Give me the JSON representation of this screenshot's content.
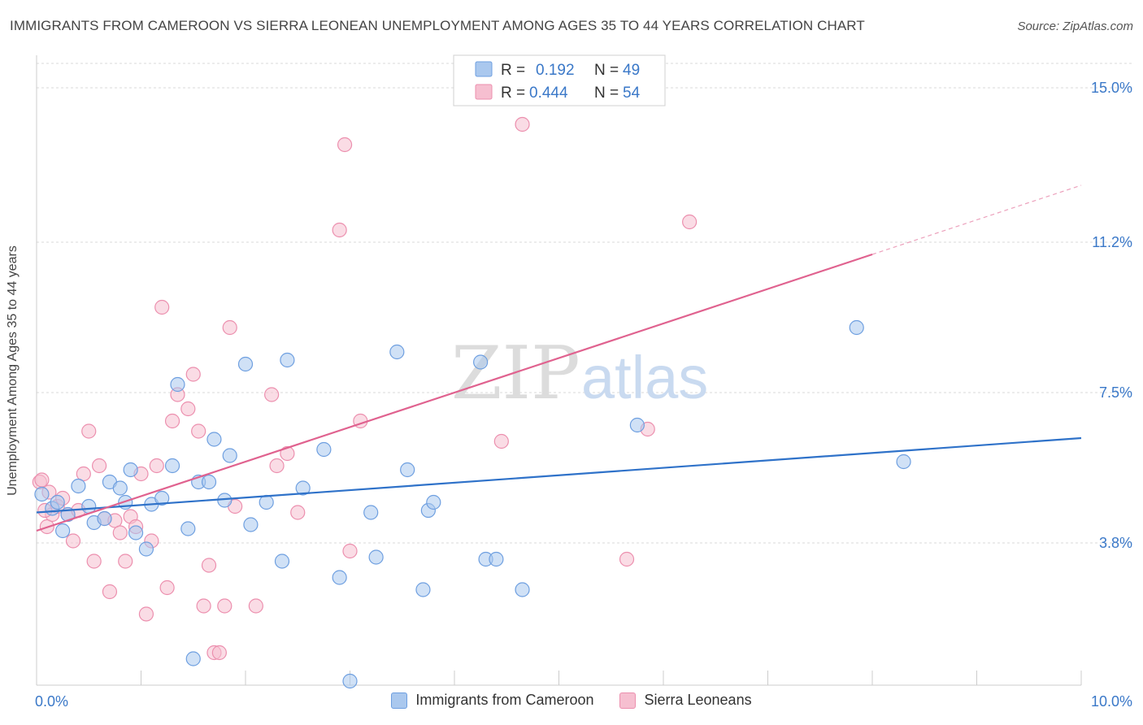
{
  "title": "IMMIGRANTS FROM CAMEROON VS SIERRA LEONEAN UNEMPLOYMENT AMONG AGES 35 TO 44 YEARS CORRELATION CHART",
  "source": "Source: ZipAtlas.com",
  "watermark": {
    "zip": "ZIP",
    "atlas": "atlas"
  },
  "colors": {
    "blue_fill": "#aac8ee",
    "blue_stroke": "#6e9fe0",
    "blue_line": "#2f72c9",
    "pink_fill": "#f6bfd0",
    "pink_stroke": "#ec8fae",
    "pink_line": "#e0628f",
    "tick_text": "#3a78c8",
    "grid": "#d9d9d9"
  },
  "legend": {
    "rows": [
      {
        "r_label": "R =",
        "r_value": "0.192",
        "n_label": "N =",
        "n_value": "49",
        "series": "blue"
      },
      {
        "r_label": "R =",
        "r_value": "0.444",
        "n_label": "N =",
        "n_value": "54",
        "series": "pink"
      }
    ]
  },
  "chart_data": {
    "type": "scatter",
    "ylabel": "Unemployment Among Ages 35 to 44 years",
    "xlim": [
      0,
      10
    ],
    "ylim": [
      0.3,
      15.6
    ],
    "x_tick_labels": [
      {
        "value": 0,
        "label": "0.0%"
      },
      {
        "value": 10,
        "label": "10.0%"
      }
    ],
    "y_tick_labels": [
      {
        "value": 3.8,
        "label": "3.8%"
      },
      {
        "value": 7.5,
        "label": "7.5%"
      },
      {
        "value": 11.2,
        "label": "11.2%"
      },
      {
        "value": 15.0,
        "label": "15.0%"
      }
    ],
    "legend_placement": "top-center",
    "grid": true,
    "series": [
      {
        "name": "Immigrants from Cameroon",
        "color_key": "blue",
        "trend": {
          "x0": 0,
          "y0": 4.55,
          "x1": 10,
          "y1": 6.38,
          "solid_until": 10
        },
        "points": [
          [
            0.05,
            5.0
          ],
          [
            0.15,
            4.65
          ],
          [
            0.2,
            4.8
          ],
          [
            0.25,
            4.1
          ],
          [
            0.3,
            4.5
          ],
          [
            0.4,
            5.2
          ],
          [
            0.5,
            4.7
          ],
          [
            0.55,
            4.3
          ],
          [
            0.65,
            4.4
          ],
          [
            0.7,
            5.3
          ],
          [
            0.8,
            5.15
          ],
          [
            0.85,
            4.8
          ],
          [
            0.9,
            5.6
          ],
          [
            0.95,
            4.05
          ],
          [
            1.05,
            3.65
          ],
          [
            1.1,
            4.75
          ],
          [
            1.2,
            4.9
          ],
          [
            1.3,
            5.7
          ],
          [
            1.35,
            7.7
          ],
          [
            1.45,
            4.15
          ],
          [
            1.5,
            0.95
          ],
          [
            1.55,
            5.3
          ],
          [
            1.65,
            5.3
          ],
          [
            1.7,
            6.35
          ],
          [
            1.8,
            4.85
          ],
          [
            1.85,
            5.95
          ],
          [
            2.0,
            8.2
          ],
          [
            2.05,
            4.25
          ],
          [
            2.2,
            4.8
          ],
          [
            2.35,
            3.35
          ],
          [
            2.4,
            8.3
          ],
          [
            2.55,
            5.15
          ],
          [
            2.75,
            6.1
          ],
          [
            2.9,
            2.95
          ],
          [
            3.0,
            0.4
          ],
          [
            3.2,
            4.55
          ],
          [
            3.25,
            3.45
          ],
          [
            3.45,
            8.5
          ],
          [
            3.55,
            5.6
          ],
          [
            3.7,
            2.65
          ],
          [
            3.75,
            4.6
          ],
          [
            3.8,
            4.8
          ],
          [
            4.25,
            8.25
          ],
          [
            4.3,
            3.4
          ],
          [
            4.4,
            3.4
          ],
          [
            4.65,
            2.65
          ],
          [
            5.75,
            6.7
          ],
          [
            7.85,
            9.1
          ],
          [
            8.3,
            5.8
          ]
        ]
      },
      {
        "name": "Sierra Leoneans",
        "color_key": "pink",
        "trend": {
          "x0": 0,
          "y0": 4.1,
          "x1": 10,
          "y1": 12.6,
          "solid_until": 8.0
        },
        "points": [
          [
            0.03,
            5.3
          ],
          [
            0.05,
            5.35
          ],
          [
            0.1,
            4.2
          ],
          [
            0.15,
            4.5
          ],
          [
            0.2,
            4.7
          ],
          [
            0.25,
            4.9
          ],
          [
            0.3,
            4.5
          ],
          [
            0.35,
            3.85
          ],
          [
            0.4,
            4.6
          ],
          [
            0.45,
            5.5
          ],
          [
            0.5,
            6.55
          ],
          [
            0.55,
            3.35
          ],
          [
            0.6,
            5.7
          ],
          [
            0.65,
            4.4
          ],
          [
            0.7,
            2.6
          ],
          [
            0.75,
            4.35
          ],
          [
            0.8,
            4.05
          ],
          [
            0.85,
            3.35
          ],
          [
            0.9,
            4.45
          ],
          [
            0.95,
            4.2
          ],
          [
            1.0,
            5.5
          ],
          [
            1.05,
            2.05
          ],
          [
            1.1,
            3.85
          ],
          [
            1.15,
            5.7
          ],
          [
            1.2,
            9.6
          ],
          [
            1.25,
            2.7
          ],
          [
            1.3,
            6.8
          ],
          [
            1.35,
            7.45
          ],
          [
            1.45,
            7.1
          ],
          [
            1.5,
            7.95
          ],
          [
            1.55,
            6.55
          ],
          [
            1.6,
            2.25
          ],
          [
            1.65,
            3.25
          ],
          [
            1.7,
            1.1
          ],
          [
            1.75,
            1.1
          ],
          [
            1.8,
            2.25
          ],
          [
            1.85,
            9.1
          ],
          [
            1.9,
            4.7
          ],
          [
            2.1,
            2.25
          ],
          [
            2.25,
            7.45
          ],
          [
            2.3,
            5.7
          ],
          [
            2.4,
            6.0
          ],
          [
            2.5,
            4.55
          ],
          [
            2.9,
            11.5
          ],
          [
            2.95,
            13.6
          ],
          [
            3.0,
            3.6
          ],
          [
            3.1,
            6.8
          ],
          [
            4.45,
            6.3
          ],
          [
            4.65,
            14.1
          ],
          [
            5.65,
            3.4
          ],
          [
            5.85,
            6.6
          ],
          [
            6.25,
            11.7
          ],
          [
            0.08,
            4.6
          ],
          [
            0.12,
            5.05
          ]
        ]
      }
    ]
  }
}
